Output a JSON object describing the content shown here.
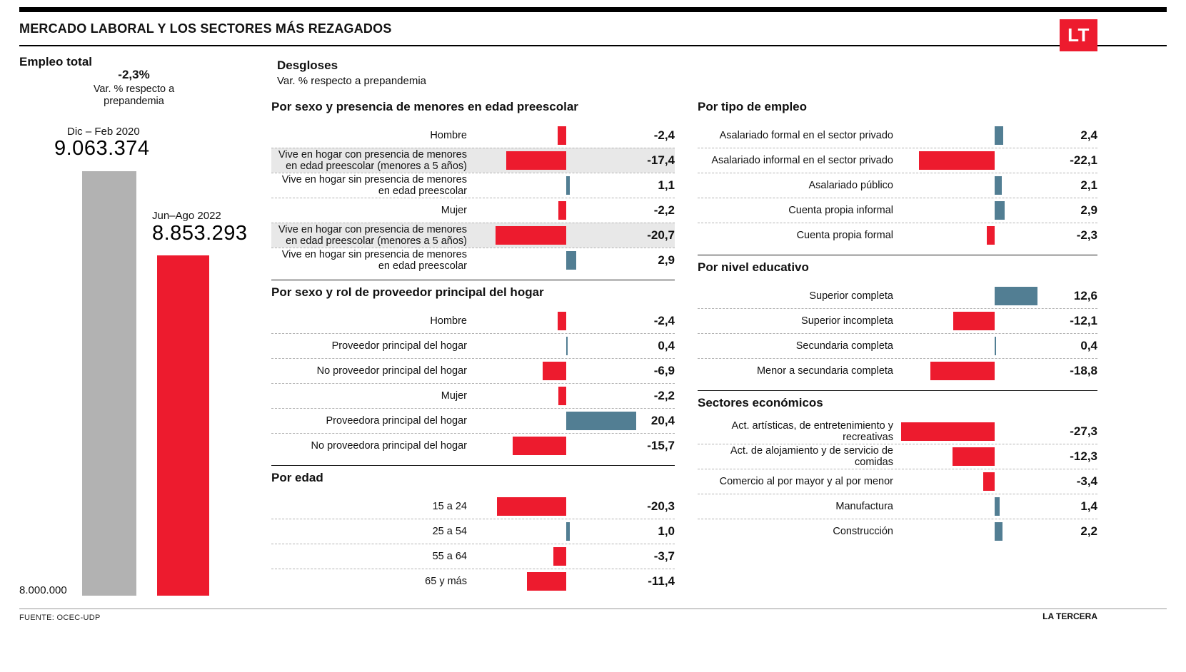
{
  "header": {
    "title": "MERCADO LABORAL Y LOS SECTORES MÁS REZAGADOS",
    "logo_text": "LT"
  },
  "footer": {
    "source": "FUENTE: OCEC-UDP",
    "credit": "LA TERCERA"
  },
  "colors": {
    "brand_red": "#ed1b2e",
    "negative_bar": "#ed1b2e",
    "positive_bar": "#527e93",
    "gray_bar": "#b2b2b2",
    "row_highlight": "#e8e8e8"
  },
  "chart_data": [
    {
      "type": "bar",
      "title": "Empleo total",
      "annotation": "-2,3%",
      "annotation_caption": "Var. % respecto a prepandemia",
      "categories": [
        "Dic – Feb 2020",
        "Jun–Ago 2022"
      ],
      "values": [
        9063374,
        8853293
      ],
      "value_labels": [
        "9.063.374",
        "8.853.293"
      ],
      "bar_colors": [
        "#b2b2b2",
        "#ed1b2e"
      ],
      "ylim": [
        8000000,
        9100000
      ],
      "baseline_label": "8.000.000",
      "xlabel": "",
      "ylabel": ""
    },
    {
      "type": "bar",
      "title": "Desgloses",
      "subtitle": "Var. % respecto a prepandemia",
      "unit": "%",
      "zero_baseline": true,
      "xlim": [
        -30,
        25
      ],
      "columns": [
        {
          "sections": [
            {
              "title": "Por sexo y presencia de menores en edad preescolar",
              "rows": [
                {
                  "label": "Hombre",
                  "value": -2.4,
                  "value_label": "-2,4"
                },
                {
                  "label": "Vive en hogar con presencia de menores en edad preescolar (menores a 5 años)",
                  "value": -17.4,
                  "value_label": "-17,4",
                  "highlight": true
                },
                {
                  "label": "Vive en hogar sin presencia de menores en edad preescolar",
                  "value": 1.1,
                  "value_label": "1,1"
                },
                {
                  "label": "Mujer",
                  "value": -2.2,
                  "value_label": "-2,2"
                },
                {
                  "label": "Vive en hogar con presencia de menores en edad preescolar (menores a 5 años)",
                  "value": -20.7,
                  "value_label": "-20,7",
                  "highlight": true
                },
                {
                  "label": "Vive en hogar sin presencia de menores en edad preescolar",
                  "value": 2.9,
                  "value_label": "2,9"
                }
              ]
            },
            {
              "title": "Por sexo y rol de proveedor principal del hogar",
              "rows": [
                {
                  "label": "Hombre",
                  "value": -2.4,
                  "value_label": "-2,4"
                },
                {
                  "label": "Proveedor principal del hogar",
                  "value": 0.4,
                  "value_label": "0,4"
                },
                {
                  "label": "No proveedor principal del hogar",
                  "value": -6.9,
                  "value_label": "-6,9"
                },
                {
                  "label": "Mujer",
                  "value": -2.2,
                  "value_label": "-2,2"
                },
                {
                  "label": "Proveedora principal del hogar",
                  "value": 20.4,
                  "value_label": "20,4"
                },
                {
                  "label": "No proveedora principal del hogar",
                  "value": -15.7,
                  "value_label": "-15,7"
                }
              ]
            },
            {
              "title": "Por edad",
              "rows": [
                {
                  "label": "15 a 24",
                  "value": -20.3,
                  "value_label": "-20,3"
                },
                {
                  "label": "25 a 54",
                  "value": 1.0,
                  "value_label": "1,0"
                },
                {
                  "label": "55 a 64",
                  "value": -3.7,
                  "value_label": "-3,7"
                },
                {
                  "label": "65 y más",
                  "value": -11.4,
                  "value_label": "-11,4"
                }
              ]
            }
          ]
        },
        {
          "sections": [
            {
              "title": "Por tipo de empleo",
              "rows": [
                {
                  "label": "Asalariado formal en el sector privado",
                  "value": 2.4,
                  "value_label": "2,4"
                },
                {
                  "label": "Asalariado informal en el sector privado",
                  "value": -22.1,
                  "value_label": "-22,1"
                },
                {
                  "label": "Asalariado público",
                  "value": 2.1,
                  "value_label": "2,1"
                },
                {
                  "label": "Cuenta propia informal",
                  "value": 2.9,
                  "value_label": "2,9"
                },
                {
                  "label": "Cuenta propia formal",
                  "value": -2.3,
                  "value_label": "-2,3"
                }
              ]
            },
            {
              "title": "Por nivel educativo",
              "rows": [
                {
                  "label": "Superior completa",
                  "value": 12.6,
                  "value_label": "12,6"
                },
                {
                  "label": "Superior incompleta",
                  "value": -12.1,
                  "value_label": "-12,1"
                },
                {
                  "label": "Secundaria completa",
                  "value": 0.4,
                  "value_label": "0,4"
                },
                {
                  "label": "Menor a secundaria completa",
                  "value": -18.8,
                  "value_label": "-18,8"
                }
              ]
            },
            {
              "title": "Sectores económicos",
              "rows": [
                {
                  "label": "Act. artísticas, de entretenimiento y recreativas",
                  "value": -27.3,
                  "value_label": "-27,3"
                },
                {
                  "label": "Act. de alojamiento y de servicio de comidas",
                  "value": -12.3,
                  "value_label": "-12,3"
                },
                {
                  "label": "Comercio al por mayor y al por menor",
                  "value": -3.4,
                  "value_label": "-3,4"
                },
                {
                  "label": "Manufactura",
                  "value": 1.4,
                  "value_label": "1,4"
                },
                {
                  "label": "Construcción",
                  "value": 2.2,
                  "value_label": "2,2"
                }
              ]
            }
          ]
        }
      ]
    }
  ]
}
